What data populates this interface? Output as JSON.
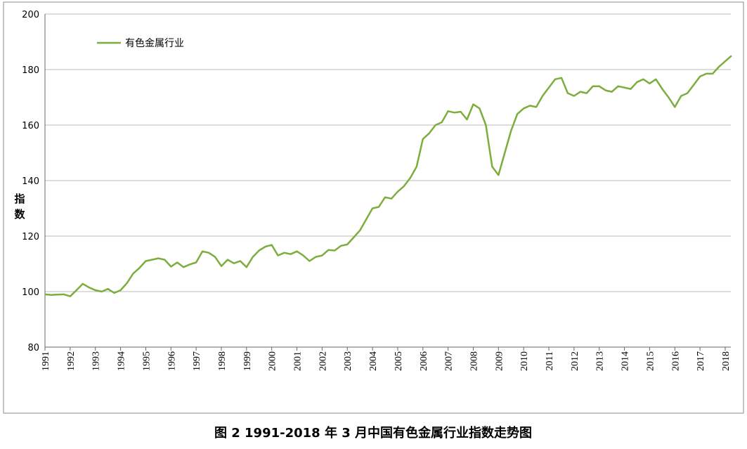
{
  "chart_data": {
    "type": "line",
    "title": "图 2   1991-2018 年 3 月中国有色金属行业指数走势图",
    "y_label": "指数",
    "legend": "upper left",
    "grid": true,
    "xlim": [
      1991,
      2018.25
    ],
    "xticks": [
      1991,
      1992,
      1993,
      1994,
      1995,
      1996,
      1997,
      1998,
      1999,
      2000,
      2001,
      2002,
      2003,
      2004,
      2005,
      2006,
      2007,
      2008,
      2009,
      2010,
      2011,
      2012,
      2013,
      2014,
      2015,
      2016,
      2017,
      2018
    ],
    "ylim": [
      80,
      200
    ],
    "yticks": [
      80,
      100,
      120,
      140,
      160,
      180,
      200
    ],
    "x": [
      1991,
      1991.25,
      1991.5,
      1991.75,
      1992,
      1992.25,
      1992.5,
      1992.75,
      1993,
      1993.25,
      1993.5,
      1993.75,
      1994,
      1994.25,
      1994.5,
      1994.75,
      1995,
      1995.25,
      1995.5,
      1995.75,
      1996,
      1996.25,
      1996.5,
      1996.75,
      1997,
      1997.25,
      1997.5,
      1997.75,
      1998,
      1998.25,
      1998.5,
      1998.75,
      1999,
      1999.25,
      1999.5,
      1999.75,
      2000,
      2000.25,
      2000.5,
      2000.75,
      2001,
      2001.25,
      2001.5,
      2001.75,
      2002,
      2002.25,
      2002.5,
      2002.75,
      2003,
      2003.25,
      2003.5,
      2003.75,
      2004,
      2004.25,
      2004.5,
      2004.75,
      2005,
      2005.25,
      2005.5,
      2005.75,
      2006,
      2006.25,
      2006.5,
      2006.75,
      2007,
      2007.25,
      2007.5,
      2007.75,
      2008,
      2008.25,
      2008.5,
      2008.75,
      2009,
      2009.25,
      2009.5,
      2009.75,
      2010,
      2010.25,
      2010.5,
      2010.75,
      2011,
      2011.25,
      2011.5,
      2011.75,
      2012,
      2012.25,
      2012.5,
      2012.75,
      2013,
      2013.25,
      2013.5,
      2013.75,
      2014,
      2014.25,
      2014.5,
      2014.75,
      2015,
      2015.25,
      2015.5,
      2015.75,
      2016,
      2016.25,
      2016.5,
      2016.75,
      2017,
      2017.25,
      2017.5,
      2017.75,
      2018,
      2018.25
    ],
    "series": [
      {
        "name": "有色金属行业",
        "color": "#7cad3d",
        "values": [
          99,
          98.8,
          98.9,
          99,
          98.3,
          100.5,
          102.8,
          101.5,
          100.5,
          100,
          101,
          99.5,
          100.5,
          103,
          106.5,
          108.5,
          111,
          111.5,
          112,
          111.5,
          109,
          110.5,
          108.8,
          109.8,
          110.5,
          114.5,
          114,
          112.5,
          109.2,
          111.5,
          110.2,
          111,
          108.8,
          112.5,
          114.8,
          116.2,
          116.8,
          113,
          114,
          113.5,
          114.5,
          113,
          111,
          112.5,
          113,
          115,
          114.8,
          116.5,
          117,
          119.5,
          122,
          126,
          130,
          130.5,
          134,
          133.5,
          136,
          138,
          141,
          145,
          155,
          157,
          160,
          161,
          165,
          164.5,
          164.8,
          162,
          167.5,
          166,
          160,
          145,
          142,
          150,
          158,
          164,
          166,
          167,
          166.5,
          170.5,
          173.5,
          176.5,
          177,
          171.5,
          170.5,
          172,
          171.5,
          174,
          174,
          172.5,
          172,
          174,
          173.5,
          173,
          175.5,
          176.5,
          175,
          176.5,
          173,
          170,
          166.5,
          170.5,
          171.5,
          174.5,
          177.5,
          178.5,
          178.5,
          181,
          183,
          185
        ]
      }
    ]
  }
}
